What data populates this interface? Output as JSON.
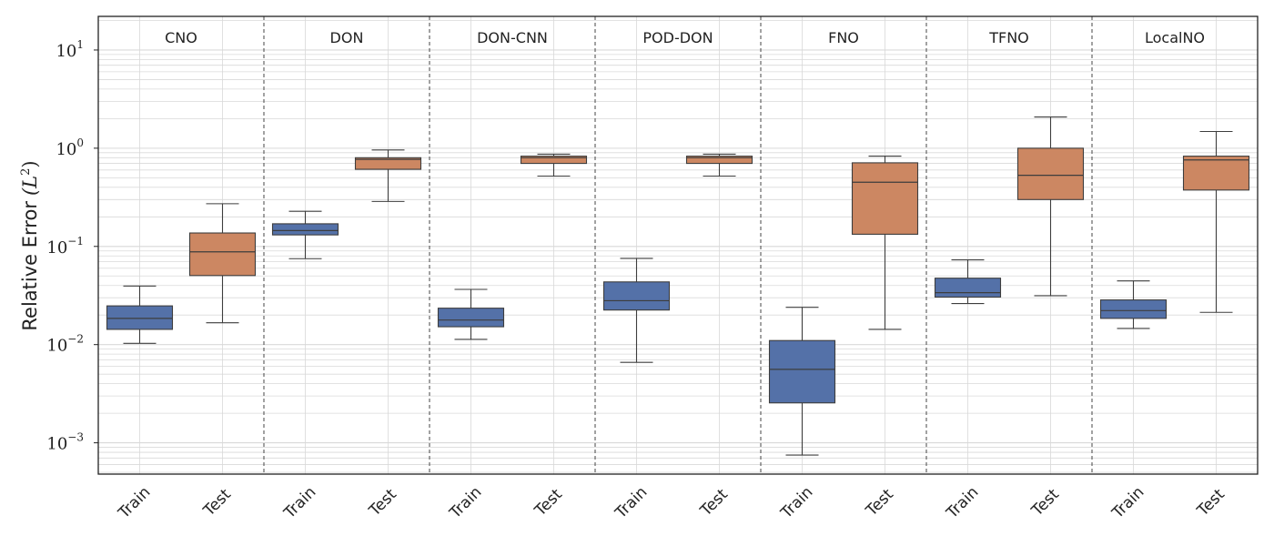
{
  "chart_data": {
    "type": "box",
    "ylabel": "Relative Error",
    "ylabel_math": "(L",
    "ylabel_exp": "2",
    "ylabel_close": ")",
    "yscale": "log",
    "ylim": [
      0.00048,
      22
    ],
    "yticks": [
      {
        "value": 0.001,
        "base": "10",
        "exp": "−3"
      },
      {
        "value": 0.01,
        "base": "10",
        "exp": "−2"
      },
      {
        "value": 0.1,
        "base": "10",
        "exp": "−1"
      },
      {
        "value": 1,
        "base": "10",
        "exp": "0"
      },
      {
        "value": 10,
        "base": "10",
        "exp": "1"
      }
    ],
    "categories": [
      "Train",
      "Test"
    ],
    "colors": {
      "Train": "#5471a8",
      "Test": "#cc8762",
      "median": "#3d3d3d",
      "grid": "#d9d9d9",
      "divider": "#444444"
    },
    "models": [
      {
        "name": "CNO",
        "Train": {
          "whislo": 0.0103,
          "q1": 0.0143,
          "med": 0.0185,
          "q3": 0.0248,
          "whishi": 0.0395
        },
        "Test": {
          "whislo": 0.0167,
          "q1": 0.0505,
          "med": 0.088,
          "q3": 0.137,
          "whishi": 0.272
        }
      },
      {
        "name": "DON",
        "Train": {
          "whislo": 0.075,
          "q1": 0.131,
          "med": 0.145,
          "q3": 0.17,
          "whishi": 0.228
        },
        "Test": {
          "whislo": 0.287,
          "q1": 0.61,
          "med": 0.77,
          "q3": 0.8,
          "whishi": 0.96
        }
      },
      {
        "name": "DON-CNN",
        "Train": {
          "whislo": 0.0113,
          "q1": 0.0152,
          "med": 0.0178,
          "q3": 0.0235,
          "whishi": 0.0365
        },
        "Test": {
          "whislo": 0.52,
          "q1": 0.7,
          "med": 0.8,
          "q3": 0.83,
          "whishi": 0.87
        }
      },
      {
        "name": "POD-DON",
        "Train": {
          "whislo": 0.0066,
          "q1": 0.0225,
          "med": 0.028,
          "q3": 0.0435,
          "whishi": 0.0755
        },
        "Test": {
          "whislo": 0.52,
          "q1": 0.7,
          "med": 0.8,
          "q3": 0.83,
          "whishi": 0.87
        }
      },
      {
        "name": "FNO",
        "Train": {
          "whislo": 0.00075,
          "q1": 0.00255,
          "med": 0.0056,
          "q3": 0.011,
          "whishi": 0.024
        },
        "Test": {
          "whislo": 0.0143,
          "q1": 0.133,
          "med": 0.45,
          "q3": 0.71,
          "whishi": 0.83
        }
      },
      {
        "name": "TFNO",
        "Train": {
          "whislo": 0.0262,
          "q1": 0.0305,
          "med": 0.0338,
          "q3": 0.0475,
          "whishi": 0.073
        },
        "Test": {
          "whislo": 0.0315,
          "q1": 0.3,
          "med": 0.53,
          "q3": 1.0,
          "whishi": 2.08
        }
      },
      {
        "name": "LocalNO",
        "Train": {
          "whislo": 0.0146,
          "q1": 0.0185,
          "med": 0.0222,
          "q3": 0.0285,
          "whishi": 0.0445
        },
        "Test": {
          "whislo": 0.0213,
          "q1": 0.375,
          "med": 0.76,
          "q3": 0.83,
          "whishi": 1.48
        }
      }
    ]
  }
}
